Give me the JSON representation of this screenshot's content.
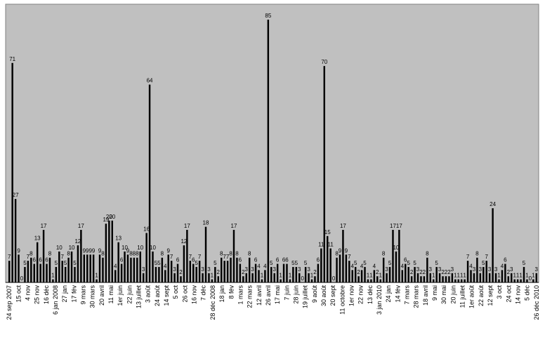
{
  "chart_data": {
    "type": "bar",
    "colors": {
      "plot_bg": "#c0c0c0",
      "bar": "#000000",
      "text": "#000000",
      "border": "#808080"
    },
    "grid": false,
    "legend": "none",
    "ylim": [
      0,
      90
    ],
    "values": [
      7,
      71,
      27,
      9,
      0,
      5,
      7,
      8,
      6,
      13,
      6,
      17,
      6,
      8,
      1,
      5,
      10,
      7,
      5,
      8,
      10,
      5,
      12,
      17,
      9,
      9,
      9,
      9,
      1,
      9,
      8,
      19,
      20,
      20,
      4,
      13,
      6,
      10,
      9,
      8,
      8,
      8,
      10,
      3,
      16,
      64,
      10,
      5,
      5,
      8,
      4,
      9,
      7,
      3,
      6,
      2,
      12,
      17,
      7,
      6,
      5,
      7,
      3,
      18,
      3,
      1,
      5,
      2,
      8,
      7,
      7,
      8,
      17,
      8,
      6,
      2,
      3,
      8,
      3,
      6,
      4,
      1,
      4,
      85,
      5,
      3,
      6,
      1,
      6,
      6,
      1,
      5,
      5,
      3,
      0,
      5,
      3,
      1,
      2,
      6,
      11,
      70,
      15,
      11,
      0,
      8,
      9,
      17,
      9,
      7,
      4,
      5,
      2,
      4,
      5,
      1,
      1,
      4,
      2,
      1,
      8,
      3,
      5,
      17,
      10,
      17,
      4,
      6,
      5,
      2,
      5,
      3,
      2,
      2,
      8,
      3,
      1,
      5,
      3,
      2,
      2,
      2,
      3,
      1,
      1,
      1,
      1,
      7,
      4,
      3,
      8,
      3,
      5,
      7,
      3,
      24,
      3,
      1,
      4,
      6,
      2,
      3,
      1,
      1,
      1,
      5,
      1,
      0,
      1,
      3
    ],
    "value_labels": [
      "7",
      "71",
      "27",
      "9",
      "0",
      "5",
      "7",
      "8",
      "6",
      "13",
      "6",
      "17",
      "6",
      "8",
      "1",
      "5",
      "10",
      "7",
      "5",
      "8",
      "10",
      "5",
      "12",
      "17",
      "9",
      "9",
      "9",
      "9",
      "1",
      "9",
      "8",
      "19",
      "20",
      "20",
      "4",
      "13",
      "6",
      "10",
      "9",
      "8",
      "8",
      "8",
      "10",
      "3",
      "16",
      "64",
      "10",
      "5",
      "5",
      "8",
      "4",
      "9",
      "7",
      "3",
      "6",
      "2",
      "12",
      "17",
      "7",
      "6",
      "5",
      "7",
      "3",
      "18",
      "3",
      "1",
      "5",
      "2",
      "8",
      "7",
      "7",
      "8",
      "17",
      "8",
      "6",
      "2",
      "3",
      "8",
      "3",
      "6",
      "4",
      "1",
      "4",
      "85",
      "5",
      "3",
      "6",
      "1",
      "6",
      "6",
      "1",
      "5",
      "5",
      "3",
      "0",
      "5",
      "3",
      "1",
      "2",
      "6",
      "11",
      "70",
      "15",
      "11",
      "0",
      "8",
      "9",
      "17",
      "9",
      "7",
      "4",
      "5",
      "2",
      "4",
      "5",
      "1",
      "1",
      "4",
      "2",
      "1",
      "8",
      "3",
      "5",
      "17",
      "10",
      "17",
      "4",
      "6",
      "5",
      "2",
      "5",
      "3",
      "2",
      "2",
      "8",
      "3",
      "1",
      "5",
      "3",
      "2",
      "2",
      "2",
      "3",
      "1",
      "1",
      "1",
      "1",
      "7",
      "4",
      "3",
      "8",
      "3",
      "5",
      "7",
      "3",
      "24",
      "3",
      "1",
      "4",
      "6",
      "2",
      "3",
      "1",
      "1",
      "1",
      "5",
      "1",
      "0",
      "1",
      "3"
    ],
    "x_tick_labels": [
      "24 sep 2007",
      "15 oct",
      "4 nov",
      "25 nov",
      "16 déc",
      "6 jan 2008",
      "27 jan",
      "17 fév",
      "9 mars",
      "30 mars",
      "20 avril",
      "11 mai",
      "1er juin",
      "22 juin",
      "13 juillet",
      "3 août",
      "24 août",
      "14 sept",
      "5 oct",
      "26 oct",
      "16 nov",
      "7 déc",
      "28 déc 2008",
      "18 jan",
      "8 fév",
      "1 mars",
      "22 mars",
      "12 avril",
      "26 avril",
      "17 mai",
      "7 juin",
      "28 juin",
      "19 juillet",
      "9 août",
      "30 août",
      "20 sept",
      "11 octobre",
      "1er nov",
      "22 nov",
      "13 déc",
      "3 jan 2010",
      "24 jan",
      "14 fév",
      "7 mars",
      "28 mars",
      "18 avril",
      "9 mai",
      "30 mai",
      "20 juin",
      "11 juillet",
      "1er août",
      "22 août",
      "12 sept",
      "3 oct",
      "24 oct",
      "14 nov",
      "5 déc",
      "26 déc 2010"
    ]
  }
}
